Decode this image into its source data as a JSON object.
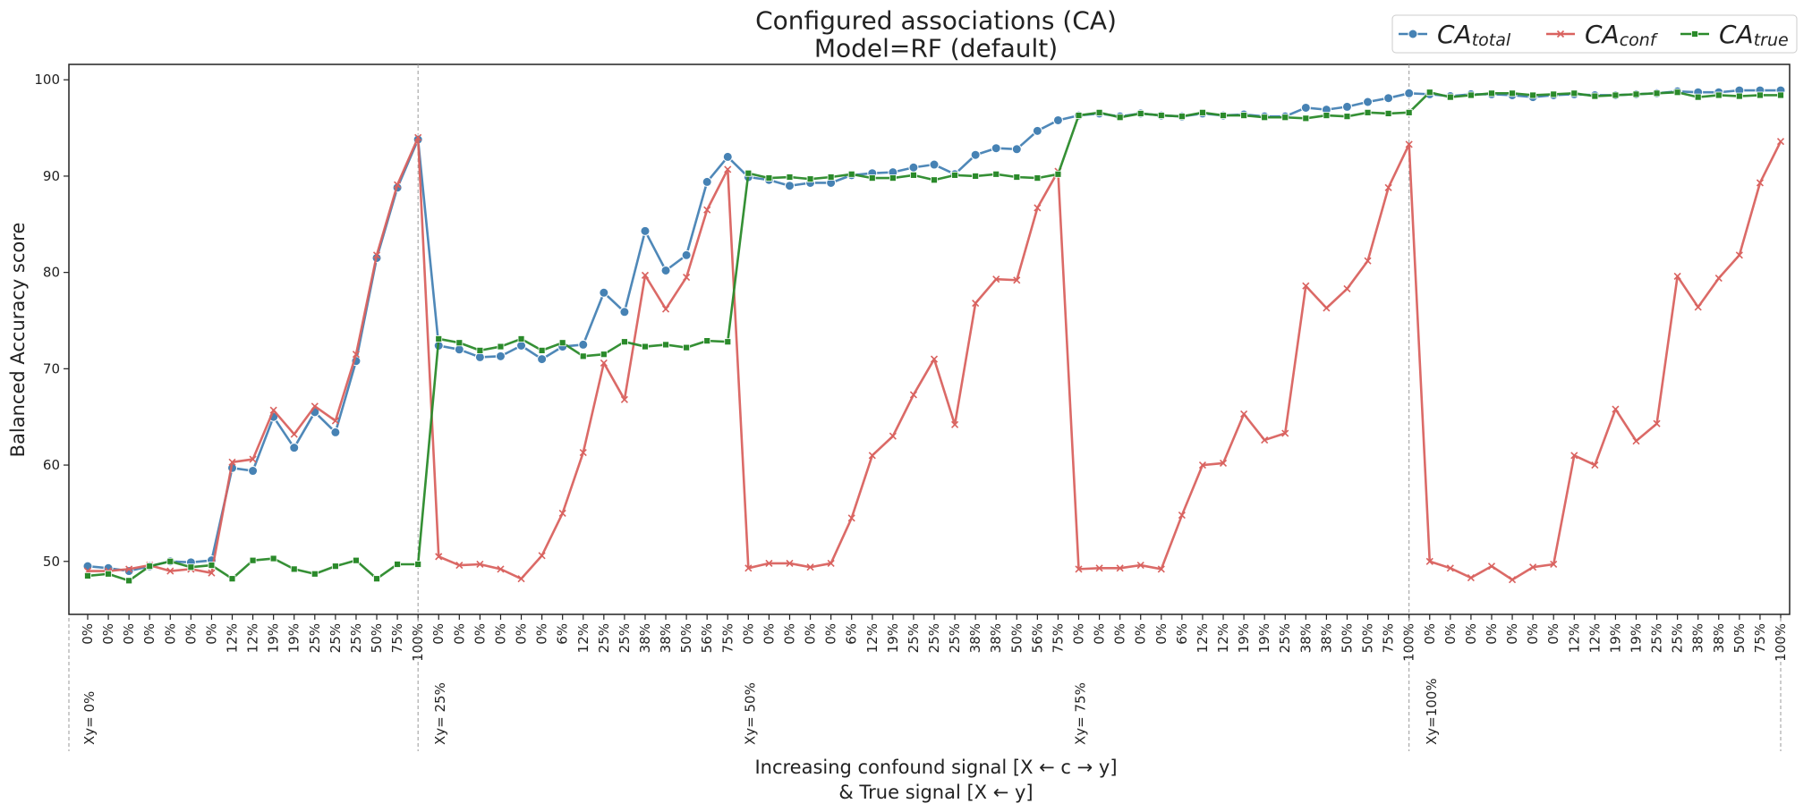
{
  "chart_data": {
    "type": "line",
    "title": "Configured associations (CA)",
    "subtitle": "Model=RF (default)",
    "y_label": "Balanced Accuracy score",
    "x_label": [
      "Increasing confound signal [X ← c → y]",
      "&   True signal  [X ← y]"
    ],
    "categories": [
      "0%",
      "0%",
      "0%",
      "0%",
      "0%",
      "0%",
      "0%",
      "12%",
      "12%",
      "19%",
      "19%",
      "25%",
      "25%",
      "25%",
      "50%",
      "75%",
      "100%",
      "0%",
      "0%",
      "0%",
      "0%",
      "0%",
      "0%",
      "6%",
      "12%",
      "25%",
      "25%",
      "38%",
      "38%",
      "50%",
      "56%",
      "75%",
      "0%",
      "0%",
      "0%",
      "0%",
      "0%",
      "6%",
      "12%",
      "19%",
      "25%",
      "25%",
      "25%",
      "38%",
      "38%",
      "50%",
      "56%",
      "75%",
      "0%",
      "0%",
      "0%",
      "0%",
      "0%",
      "6%",
      "12%",
      "12%",
      "19%",
      "19%",
      "25%",
      "38%",
      "38%",
      "50%",
      "50%",
      "75%",
      "100%",
      "0%",
      "0%",
      "0%",
      "0%",
      "0%",
      "0%",
      "0%",
      "12%",
      "12%",
      "19%",
      "19%",
      "25%",
      "25%",
      "38%",
      "38%",
      "50%",
      "75%",
      "100%"
    ],
    "groups": [
      {
        "label": "Xy=  0%",
        "start": 0
      },
      {
        "label": "Xy= 25%",
        "start": 17
      },
      {
        "label": "Xy= 50%",
        "start": 32
      },
      {
        "label": "Xy= 75%",
        "start": 48
      },
      {
        "label": "Xy=100%",
        "start": 65
      }
    ],
    "ylim": [
      44.5,
      101.6
    ],
    "yticks": [
      50,
      60,
      70,
      80,
      90,
      100
    ],
    "grid": false,
    "legend": "upper right",
    "series": [
      {
        "name": [
          "CA",
          "total"
        ],
        "color": "#4682b4",
        "marker": "circle",
        "values": [
          49.5,
          49.3,
          49.0,
          49.5,
          50.0,
          49.9,
          50.1,
          59.7,
          59.4,
          65.0,
          61.8,
          65.5,
          63.4,
          70.8,
          81.5,
          88.8,
          93.8,
          72.4,
          72.0,
          71.2,
          71.3,
          72.4,
          71.0,
          72.3,
          72.5,
          77.9,
          75.9,
          84.3,
          80.2,
          81.8,
          89.4,
          92.0,
          89.9,
          89.6,
          89.0,
          89.3,
          89.3,
          90.1,
          90.3,
          90.4,
          90.9,
          91.2,
          90.2,
          92.2,
          92.9,
          92.8,
          94.7,
          95.8,
          96.3,
          96.5,
          96.2,
          96.5,
          96.3,
          96.2,
          96.5,
          96.3,
          96.4,
          96.2,
          96.2,
          97.1,
          96.9,
          97.2,
          97.7,
          98.1,
          98.6,
          98.5,
          98.3,
          98.5,
          98.5,
          98.4,
          98.2,
          98.4,
          98.5,
          98.4,
          98.4,
          98.5,
          98.6,
          98.8,
          98.7,
          98.7,
          98.9,
          98.9,
          98.9
        ]
      },
      {
        "name": [
          "CA",
          "conf"
        ],
        "color": "#d9625f",
        "marker": "x",
        "values": [
          49.0,
          49.0,
          49.2,
          49.6,
          49.0,
          49.2,
          48.8,
          60.3,
          60.6,
          65.7,
          63.2,
          66.1,
          64.6,
          71.5,
          81.8,
          89.1,
          94.0,
          50.5,
          49.6,
          49.7,
          49.2,
          48.2,
          50.6,
          55.0,
          61.3,
          70.6,
          66.8,
          79.7,
          76.2,
          79.5,
          86.5,
          90.7,
          49.3,
          49.8,
          49.8,
          49.4,
          49.8,
          54.5,
          61.0,
          63.0,
          67.3,
          71.0,
          64.2,
          76.8,
          79.3,
          79.2,
          86.7,
          90.5,
          49.2,
          49.3,
          49.3,
          49.6,
          49.2,
          54.8,
          60.0,
          60.2,
          65.3,
          62.6,
          63.3,
          78.6,
          76.3,
          78.3,
          81.2,
          88.8,
          93.3,
          50.0,
          49.3,
          48.3,
          49.5,
          48.1,
          49.4,
          49.7,
          61.0,
          60.0,
          65.8,
          62.5,
          64.3,
          79.6,
          76.4,
          79.4,
          81.8,
          89.3,
          93.6
        ]
      },
      {
        "name": [
          "CA",
          "true"
        ],
        "color": "#2a8a2a",
        "marker": "square",
        "values": [
          48.5,
          48.7,
          48.0,
          49.5,
          50.0,
          49.4,
          49.6,
          48.2,
          50.1,
          50.3,
          49.2,
          48.7,
          49.5,
          50.1,
          48.2,
          49.7,
          49.7,
          73.1,
          72.7,
          71.9,
          72.3,
          73.1,
          71.9,
          72.7,
          71.3,
          71.5,
          72.8,
          72.3,
          72.5,
          72.2,
          72.9,
          72.8,
          90.3,
          89.8,
          89.9,
          89.7,
          89.9,
          90.2,
          89.8,
          89.8,
          90.1,
          89.6,
          90.1,
          90.0,
          90.2,
          89.9,
          89.8,
          90.2,
          96.3,
          96.6,
          96.1,
          96.5,
          96.3,
          96.2,
          96.6,
          96.3,
          96.3,
          96.1,
          96.1,
          96.0,
          96.3,
          96.2,
          96.6,
          96.5,
          96.6,
          98.7,
          98.2,
          98.4,
          98.6,
          98.6,
          98.4,
          98.5,
          98.6,
          98.3,
          98.4,
          98.5,
          98.6,
          98.7,
          98.2,
          98.4,
          98.3,
          98.4,
          98.4
        ]
      }
    ]
  }
}
